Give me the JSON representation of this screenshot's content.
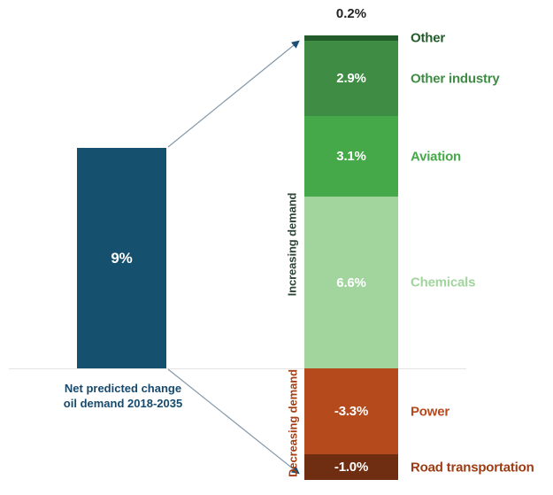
{
  "chart_data": {
    "type": "bar",
    "variant": "net-change-breakdown-stacked",
    "title": "",
    "unit": "%",
    "net_bar": {
      "value": 9,
      "label": "9%",
      "caption_line1": "Net predicted change",
      "caption_line2": "oil demand 2018-2035",
      "color": "#15506e"
    },
    "group_labels": {
      "increasing": "Increasing demand",
      "decreasing": "Decreasing demand"
    },
    "segments": [
      {
        "name": "Other",
        "value": 0.2,
        "label": "0.2%",
        "color": "#235c2b",
        "label_color": "#235c2b",
        "value_label_outside": true
      },
      {
        "name": "Other industry",
        "value": 2.9,
        "label": "2.9%",
        "color": "#3f8c44",
        "label_color": "#3f8c44"
      },
      {
        "name": "Aviation",
        "value": 3.1,
        "label": "3.1%",
        "color": "#45a94a",
        "label_color": "#45a94a"
      },
      {
        "name": "Chemicals",
        "value": 6.6,
        "label": "6.6%",
        "color": "#a2d49e",
        "label_color": "#a2d49e"
      },
      {
        "name": "Power",
        "value": -3.3,
        "label": "-3.3%",
        "color": "#b54a1c",
        "label_color": "#b5491c"
      },
      {
        "name": "Road transportation",
        "value": -1.0,
        "label": "-1.0%",
        "color": "#6f2d11",
        "label_color": "#9d3c12"
      }
    ],
    "colors": {
      "value_text_inside": "#ffffff",
      "outside_value_text": "#232323",
      "increasing_text": "#2f4636",
      "decreasing_text": "#a34016",
      "arrow_line": "#8599ab",
      "arrow_head": "#1c4f76",
      "baseline": "#e4e4e4"
    },
    "axis": {
      "baseline_value": 0,
      "grid": false,
      "legend": "none"
    }
  }
}
